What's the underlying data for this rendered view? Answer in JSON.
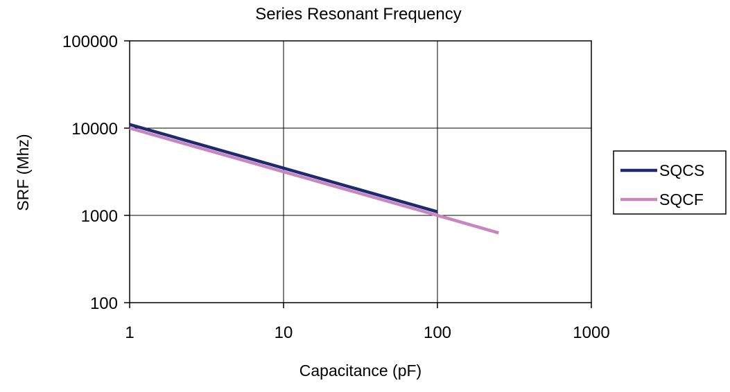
{
  "chart_data": {
    "type": "line",
    "title": "Series Resonant Frequency",
    "xlabel": "Capacitance (pF)",
    "ylabel": "SRF (Mhz)",
    "x_scale": "log",
    "y_scale": "log",
    "xlim": [
      1,
      1000
    ],
    "ylim": [
      100,
      100000
    ],
    "x_ticks": [
      "1",
      "10",
      "100",
      "1000"
    ],
    "y_ticks": [
      "100",
      "1000",
      "10000",
      "100000"
    ],
    "x_tick_values": [
      1,
      10,
      100,
      1000
    ],
    "y_tick_values": [
      100,
      1000,
      10000,
      100000
    ],
    "grid": true,
    "legend_position": "right",
    "series": [
      {
        "name": "SQCS",
        "color": "#1f2a6e",
        "x": [
          1,
          100
        ],
        "y": [
          11000,
          1100
        ]
      },
      {
        "name": "SQCF",
        "color": "#c786c0",
        "x": [
          1,
          100,
          250
        ],
        "y": [
          10000,
          1000,
          630
        ]
      }
    ]
  }
}
